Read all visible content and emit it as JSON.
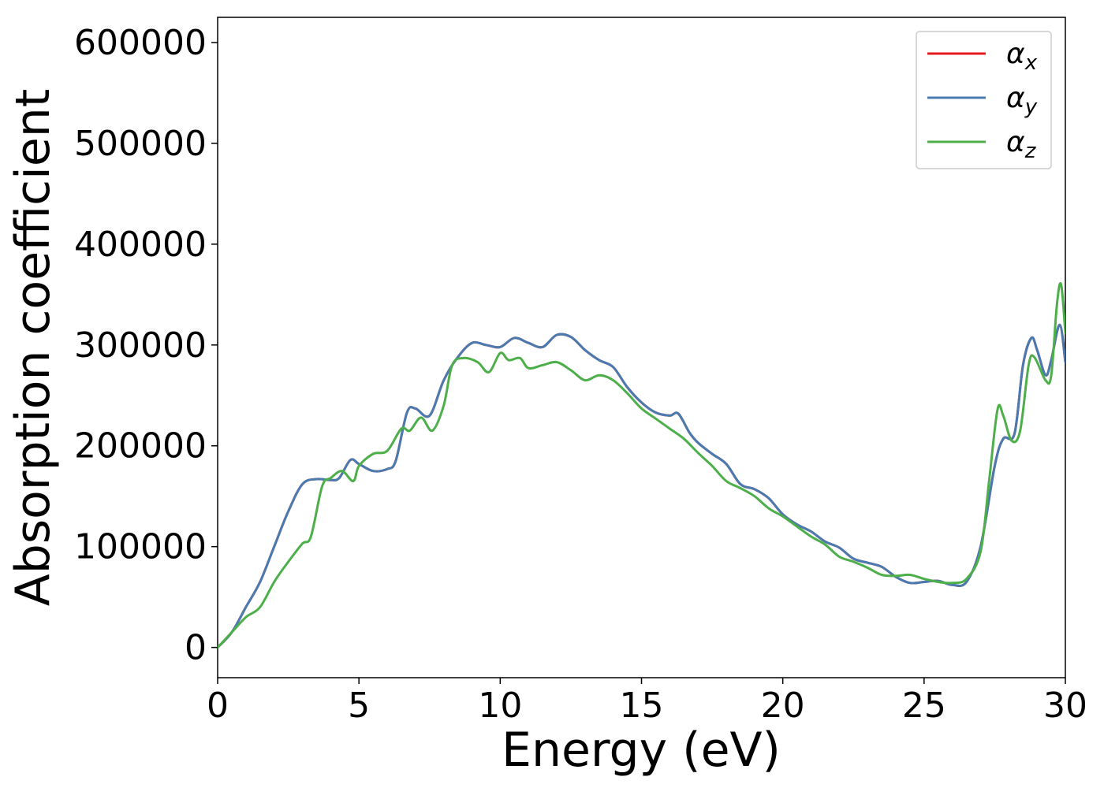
{
  "chart_data": {
    "type": "line",
    "xlabel": "Energy (eV)",
    "ylabel": "Absorption coefficient",
    "xlim": [
      0,
      30
    ],
    "ylim": [
      -30000,
      625000
    ],
    "xticks": [
      0,
      5,
      10,
      15,
      20,
      25,
      30
    ],
    "yticks": [
      0,
      100000,
      200000,
      300000,
      400000,
      500000,
      600000
    ],
    "grid": false,
    "legend_position": "top-right",
    "series": [
      {
        "name": "αx",
        "name_base": "α",
        "name_sub": "x",
        "color": "#e41a1c",
        "points": [
          [
            0,
            0
          ],
          [
            0.5,
            15000
          ],
          [
            1,
            40000
          ],
          [
            1.5,
            65000
          ],
          [
            2,
            100000
          ],
          [
            2.5,
            135000
          ],
          [
            3,
            162000
          ],
          [
            3.5,
            167000
          ],
          [
            4,
            166000
          ],
          [
            4.3,
            168000
          ],
          [
            4.7,
            186000
          ],
          [
            5,
            182000
          ],
          [
            5.5,
            175000
          ],
          [
            6,
            177000
          ],
          [
            6.3,
            185000
          ],
          [
            6.7,
            233000
          ],
          [
            7,
            237000
          ],
          [
            7.5,
            230000
          ],
          [
            8,
            265000
          ],
          [
            8.5,
            288000
          ],
          [
            9,
            302000
          ],
          [
            9.5,
            300000
          ],
          [
            10,
            298000
          ],
          [
            10.5,
            307000
          ],
          [
            11,
            302000
          ],
          [
            11.5,
            298000
          ],
          [
            12,
            310000
          ],
          [
            12.5,
            308000
          ],
          [
            13,
            295000
          ],
          [
            13.5,
            285000
          ],
          [
            14,
            278000
          ],
          [
            14.5,
            258000
          ],
          [
            15,
            243000
          ],
          [
            15.5,
            233000
          ],
          [
            16,
            230000
          ],
          [
            16.3,
            232000
          ],
          [
            16.7,
            213000
          ],
          [
            17,
            203000
          ],
          [
            17.5,
            192000
          ],
          [
            18,
            182000
          ],
          [
            18.5,
            162000
          ],
          [
            19,
            157000
          ],
          [
            19.5,
            148000
          ],
          [
            20,
            132000
          ],
          [
            20.5,
            122000
          ],
          [
            21,
            115000
          ],
          [
            21.5,
            105000
          ],
          [
            22,
            99000
          ],
          [
            22.5,
            88000
          ],
          [
            23,
            84000
          ],
          [
            23.5,
            80000
          ],
          [
            24,
            70000
          ],
          [
            24.5,
            64000
          ],
          [
            25,
            65000
          ],
          [
            25.5,
            66000
          ],
          [
            26,
            62000
          ],
          [
            26.5,
            65000
          ],
          [
            27,
            100000
          ],
          [
            27.5,
            180000
          ],
          [
            27.8,
            207000
          ],
          [
            28.2,
            212000
          ],
          [
            28.5,
            280000
          ],
          [
            28.8,
            307000
          ],
          [
            29,
            295000
          ],
          [
            29.3,
            270000
          ],
          [
            29.5,
            285000
          ],
          [
            29.8,
            320000
          ],
          [
            30,
            283000
          ]
        ]
      },
      {
        "name": "αy",
        "name_base": "α",
        "name_sub": "y",
        "color": "#4a7bb0",
        "points": [
          [
            0,
            0
          ],
          [
            0.5,
            15000
          ],
          [
            1,
            40000
          ],
          [
            1.5,
            65000
          ],
          [
            2,
            100000
          ],
          [
            2.5,
            135000
          ],
          [
            3,
            162000
          ],
          [
            3.5,
            167000
          ],
          [
            4,
            166000
          ],
          [
            4.3,
            168000
          ],
          [
            4.7,
            186000
          ],
          [
            5,
            182000
          ],
          [
            5.5,
            175000
          ],
          [
            6,
            177000
          ],
          [
            6.3,
            185000
          ],
          [
            6.7,
            233000
          ],
          [
            7,
            237000
          ],
          [
            7.5,
            230000
          ],
          [
            8,
            265000
          ],
          [
            8.5,
            288000
          ],
          [
            9,
            302000
          ],
          [
            9.5,
            300000
          ],
          [
            10,
            298000
          ],
          [
            10.5,
            307000
          ],
          [
            11,
            302000
          ],
          [
            11.5,
            298000
          ],
          [
            12,
            310000
          ],
          [
            12.5,
            308000
          ],
          [
            13,
            295000
          ],
          [
            13.5,
            285000
          ],
          [
            14,
            278000
          ],
          [
            14.5,
            258000
          ],
          [
            15,
            243000
          ],
          [
            15.5,
            233000
          ],
          [
            16,
            230000
          ],
          [
            16.3,
            232000
          ],
          [
            16.7,
            213000
          ],
          [
            17,
            203000
          ],
          [
            17.5,
            192000
          ],
          [
            18,
            182000
          ],
          [
            18.5,
            162000
          ],
          [
            19,
            157000
          ],
          [
            19.5,
            148000
          ],
          [
            20,
            132000
          ],
          [
            20.5,
            122000
          ],
          [
            21,
            115000
          ],
          [
            21.5,
            105000
          ],
          [
            22,
            99000
          ],
          [
            22.5,
            88000
          ],
          [
            23,
            84000
          ],
          [
            23.5,
            80000
          ],
          [
            24,
            70000
          ],
          [
            24.5,
            64000
          ],
          [
            25,
            65000
          ],
          [
            25.5,
            66000
          ],
          [
            26,
            62000
          ],
          [
            26.5,
            65000
          ],
          [
            27,
            100000
          ],
          [
            27.5,
            180000
          ],
          [
            27.8,
            207000
          ],
          [
            28.2,
            212000
          ],
          [
            28.5,
            280000
          ],
          [
            28.8,
            307000
          ],
          [
            29,
            295000
          ],
          [
            29.3,
            270000
          ],
          [
            29.5,
            285000
          ],
          [
            29.8,
            320000
          ],
          [
            30,
            283000
          ]
        ]
      },
      {
        "name": "αz",
        "name_base": "α",
        "name_sub": "z",
        "color": "#4daf4a",
        "points": [
          [
            0,
            0
          ],
          [
            0.5,
            15000
          ],
          [
            1,
            30000
          ],
          [
            1.5,
            40000
          ],
          [
            2,
            65000
          ],
          [
            2.5,
            85000
          ],
          [
            3,
            103000
          ],
          [
            3.3,
            110000
          ],
          [
            3.7,
            160000
          ],
          [
            4,
            168000
          ],
          [
            4.4,
            175000
          ],
          [
            4.8,
            165000
          ],
          [
            5,
            180000
          ],
          [
            5.5,
            192000
          ],
          [
            6,
            195000
          ],
          [
            6.5,
            217000
          ],
          [
            6.8,
            215000
          ],
          [
            7.2,
            228000
          ],
          [
            7.6,
            215000
          ],
          [
            8,
            240000
          ],
          [
            8.3,
            280000
          ],
          [
            8.7,
            287000
          ],
          [
            9.2,
            283000
          ],
          [
            9.6,
            273000
          ],
          [
            10,
            292000
          ],
          [
            10.3,
            285000
          ],
          [
            10.7,
            287000
          ],
          [
            11,
            277000
          ],
          [
            11.5,
            280000
          ],
          [
            12,
            283000
          ],
          [
            12.5,
            275000
          ],
          [
            13,
            265000
          ],
          [
            13.5,
            270000
          ],
          [
            14,
            265000
          ],
          [
            14.5,
            252000
          ],
          [
            15,
            237000
          ],
          [
            15.5,
            227000
          ],
          [
            16,
            217000
          ],
          [
            16.5,
            207000
          ],
          [
            17,
            193000
          ],
          [
            17.5,
            180000
          ],
          [
            18,
            165000
          ],
          [
            18.5,
            158000
          ],
          [
            19,
            150000
          ],
          [
            19.5,
            138000
          ],
          [
            20,
            130000
          ],
          [
            20.5,
            120000
          ],
          [
            21,
            110000
          ],
          [
            21.5,
            102000
          ],
          [
            22,
            90000
          ],
          [
            22.5,
            85000
          ],
          [
            23,
            79000
          ],
          [
            23.5,
            72000
          ],
          [
            24,
            71000
          ],
          [
            24.5,
            72000
          ],
          [
            25,
            68000
          ],
          [
            25.5,
            65000
          ],
          [
            26,
            64000
          ],
          [
            26.5,
            68000
          ],
          [
            27,
            95000
          ],
          [
            27.3,
            165000
          ],
          [
            27.6,
            236000
          ],
          [
            27.8,
            230000
          ],
          [
            28.1,
            205000
          ],
          [
            28.4,
            215000
          ],
          [
            28.7,
            280000
          ],
          [
            28.9,
            288000
          ],
          [
            29.3,
            265000
          ],
          [
            29.5,
            270000
          ],
          [
            29.7,
            340000
          ],
          [
            29.85,
            360000
          ],
          [
            30,
            312000
          ]
        ]
      }
    ]
  }
}
